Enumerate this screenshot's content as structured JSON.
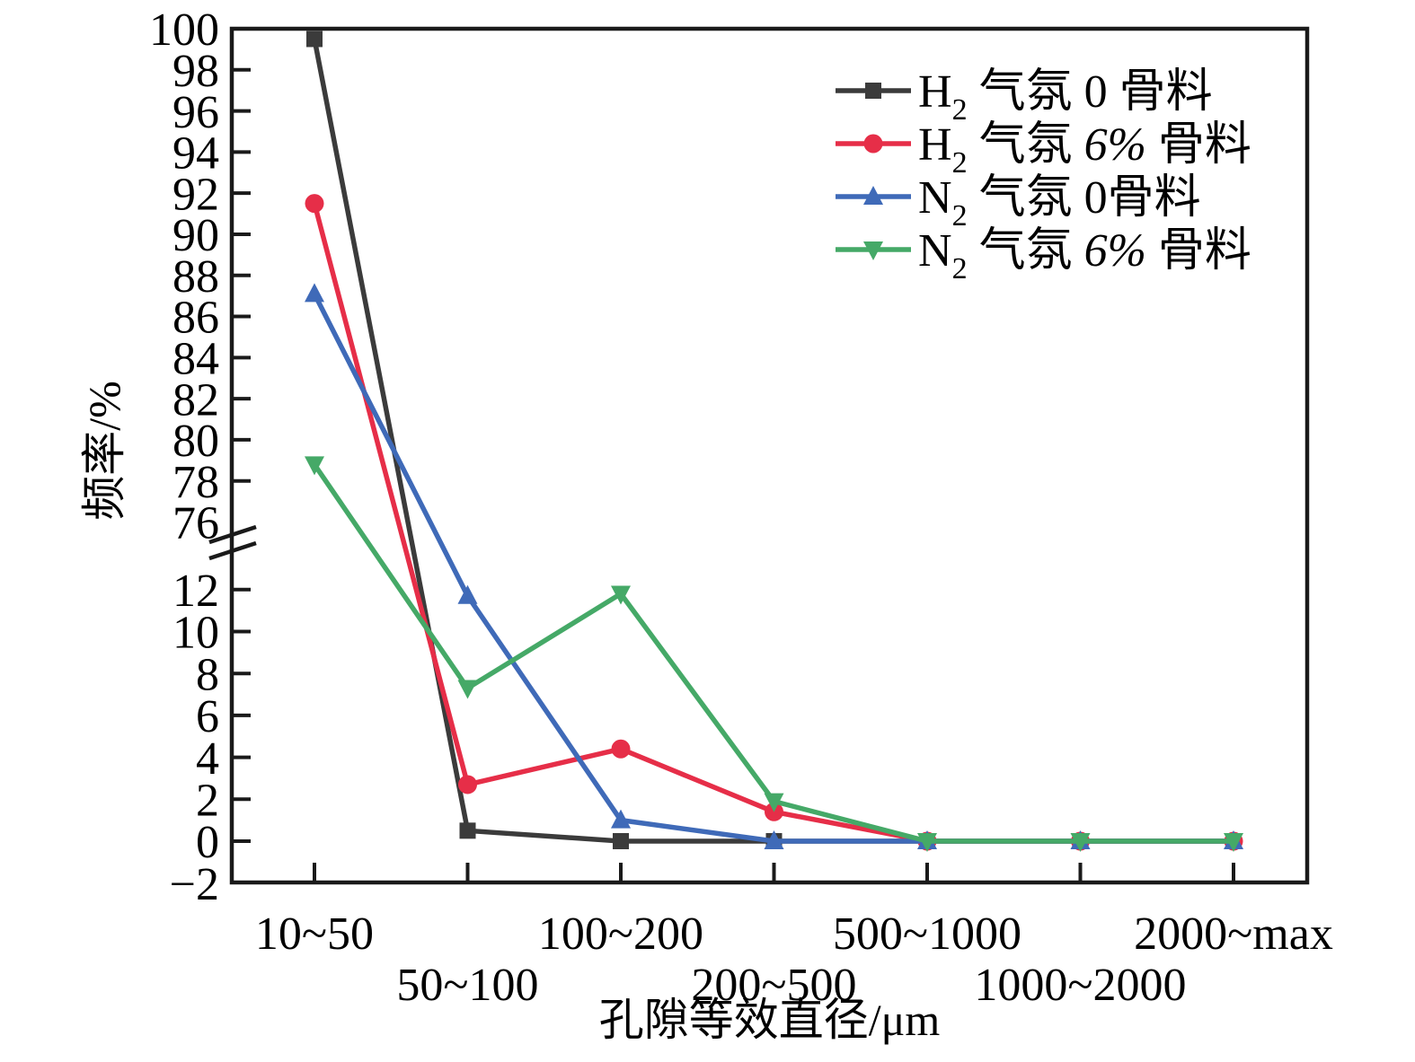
{
  "chart_data": {
    "type": "line",
    "title": "",
    "xlabel": "孔隙等效直径/μm",
    "ylabel": "频率/%",
    "categories": [
      "10~50",
      "50~100",
      "100~200",
      "200~500",
      "500~1000",
      "1000~2000",
      "2000~max"
    ],
    "x_label_stagger_rows": [
      0,
      1,
      0,
      1,
      0,
      1,
      0
    ],
    "grid": false,
    "legend_position": "top-right",
    "axis_break": {
      "style": "double-slash",
      "between": [
        13.5,
        76
      ]
    },
    "y_upper": {
      "min": 76,
      "max": 100,
      "ticks": [
        76,
        78,
        80,
        82,
        84,
        86,
        88,
        90,
        92,
        94,
        96,
        98,
        100
      ]
    },
    "y_lower": {
      "min": -2,
      "max": 13.5,
      "ticks": [
        -2,
        0,
        2,
        4,
        6,
        8,
        10,
        12
      ]
    },
    "series": [
      {
        "name": "H₂ 气氛 0 骨料",
        "label_segments": [
          {
            "t": "H"
          },
          {
            "t": "2",
            "sub": true
          },
          {
            "t": " 气氛 0 骨料"
          }
        ],
        "color": "#3b3b3b",
        "marker": "square",
        "values": [
          99.5,
          0.5,
          0,
          0,
          0,
          0,
          0
        ]
      },
      {
        "name": "H₂ 气氛 6% 骨料",
        "label_segments": [
          {
            "t": "H"
          },
          {
            "t": "2",
            "sub": true
          },
          {
            "t": " 气氛 "
          },
          {
            "t": "6%",
            "italic": true
          },
          {
            "t": " 骨料"
          }
        ],
        "color": "#e62e48",
        "marker": "circle",
        "values": [
          91.5,
          2.7,
          4.4,
          1.4,
          0,
          0,
          0
        ]
      },
      {
        "name": "N₂ 气氛 0骨料",
        "label_segments": [
          {
            "t": "N"
          },
          {
            "t": "2",
            "sub": true
          },
          {
            "t": " 气氛 0骨料"
          }
        ],
        "color": "#3f6ab8",
        "marker": "triangle-up",
        "values": [
          87.1,
          11.7,
          1.0,
          0,
          0,
          0,
          0
        ]
      },
      {
        "name": "N₂ 气氛 6% 骨料",
        "label_segments": [
          {
            "t": "N"
          },
          {
            "t": "2",
            "sub": true
          },
          {
            "t": " 气氛 "
          },
          {
            "t": "6%",
            "italic": true
          },
          {
            "t": " 骨料"
          }
        ],
        "color": "#45a967",
        "marker": "triangle-down",
        "values": [
          78.8,
          7.3,
          11.8,
          1.9,
          0,
          0,
          0
        ]
      }
    ]
  }
}
